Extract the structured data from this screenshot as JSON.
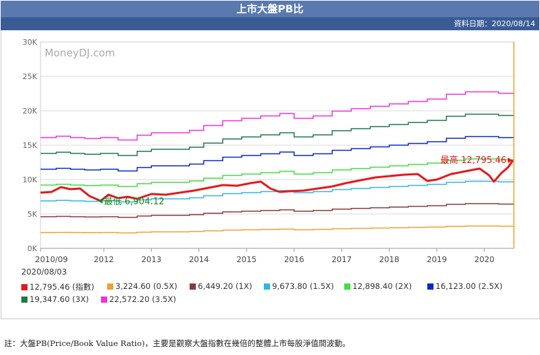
{
  "header": {
    "title": "上市大盤PB比",
    "date_text": "資料日期：2020/08/14"
  },
  "chart_data": {
    "type": "line",
    "watermark": "MoneyDJ.com",
    "x_ticks": [
      "2010/09",
      "2012",
      "2013",
      "2014",
      "2015",
      "2016",
      "2017",
      "2018",
      "2019",
      "2020"
    ],
    "y_ticks": [
      "0K",
      "5K",
      "10K",
      "15K",
      "20K",
      "25K",
      "30K"
    ],
    "ylim": [
      0,
      30000
    ],
    "x_range": [
      2010.67,
      2020.62
    ],
    "legend_date": "2020/08/03",
    "annotations": {
      "max_label": "最高 12,795.46",
      "min_label": "最低 6,904.12",
      "max_point": {
        "x": 2020.55,
        "y": 12795
      },
      "min_point": {
        "x": 2011.93,
        "y": 6904
      }
    },
    "index_series": {
      "name": "12,795.46 (指數)",
      "color": "#e31a1c",
      "x": [
        2010.67,
        2010.9,
        2011.1,
        2011.3,
        2011.5,
        2011.7,
        2011.93,
        2012.1,
        2012.3,
        2012.5,
        2012.7,
        2013.0,
        2013.3,
        2013.6,
        2013.9,
        2014.2,
        2014.5,
        2014.8,
        2015.1,
        2015.3,
        2015.5,
        2015.7,
        2015.9,
        2016.2,
        2016.5,
        2016.8,
        2017.1,
        2017.4,
        2017.7,
        2018.0,
        2018.3,
        2018.6,
        2018.8,
        2019.0,
        2019.3,
        2019.6,
        2019.9,
        2020.1,
        2020.2,
        2020.35,
        2020.5,
        2020.6
      ],
      "values": [
        8100,
        8200,
        8900,
        8600,
        8700,
        7600,
        6904,
        7800,
        7300,
        7500,
        7200,
        7900,
        7800,
        8100,
        8400,
        8800,
        9200,
        9100,
        9500,
        9700,
        8700,
        8200,
        8300,
        8400,
        8700,
        9000,
        9500,
        9900,
        10300,
        10500,
        10700,
        10800,
        9800,
        10000,
        10800,
        11200,
        11600,
        10600,
        9700,
        10900,
        11800,
        12795
      ]
    },
    "pb_x": [
      2010.67,
      2011.0,
      2011.3,
      2011.6,
      2011.93,
      2012.3,
      2012.7,
      2013.0,
      2013.4,
      2013.8,
      2014.1,
      2014.5,
      2014.9,
      2015.3,
      2015.7,
      2016.0,
      2016.4,
      2016.8,
      2017.2,
      2017.6,
      2018.0,
      2018.4,
      2018.8,
      2019.2,
      2019.6,
      2020.0,
      2020.3,
      2020.62
    ],
    "pb_series": [
      {
        "name": "3,224.60 (0.5X)",
        "color": "#f0a030",
        "values": [
          2300,
          2330,
          2300,
          2280,
          2300,
          2250,
          2350,
          2400,
          2400,
          2450,
          2550,
          2650,
          2700,
          2750,
          2800,
          2700,
          2750,
          2850,
          2900,
          2950,
          3000,
          3050,
          3100,
          3200,
          3250,
          3250,
          3220,
          3224
        ]
      },
      {
        "name": "6,449.20 (1X)",
        "color": "#8b3a3a",
        "values": [
          4600,
          4650,
          4600,
          4560,
          4600,
          4500,
          4700,
          4800,
          4800,
          4900,
          5100,
          5300,
          5400,
          5500,
          5600,
          5400,
          5500,
          5700,
          5800,
          5900,
          6000,
          6100,
          6200,
          6400,
          6500,
          6500,
          6440,
          6449
        ]
      },
      {
        "name": "9,673.80 (1.5X)",
        "color": "#33b5e5",
        "values": [
          6900,
          6980,
          6900,
          6840,
          6900,
          6750,
          7050,
          7200,
          7200,
          7350,
          7650,
          7950,
          8100,
          8250,
          8400,
          8100,
          8250,
          8550,
          8700,
          8850,
          9000,
          9150,
          9300,
          9600,
          9750,
          9750,
          9660,
          9673
        ]
      },
      {
        "name": "12,898.40 (2X)",
        "color": "#44dd44",
        "values": [
          9200,
          9310,
          9200,
          9120,
          9200,
          9000,
          9400,
          9600,
          9600,
          9800,
          10200,
          10600,
          10800,
          11000,
          11200,
          10800,
          11000,
          11400,
          11600,
          11800,
          12000,
          12200,
          12400,
          12800,
          13000,
          13000,
          12880,
          12898
        ]
      },
      {
        "name": "16,123.00 (2.5X)",
        "color": "#0a28c8",
        "values": [
          11500,
          11640,
          11500,
          11400,
          11500,
          11250,
          11750,
          12000,
          12000,
          12250,
          12750,
          13250,
          13500,
          13750,
          14000,
          13500,
          13750,
          14250,
          14500,
          14750,
          15000,
          15250,
          15500,
          16000,
          16250,
          16250,
          16100,
          16123
        ]
      },
      {
        "name": "19,347.60 (3X)",
        "color": "#1f7a4a",
        "values": [
          13800,
          13970,
          13800,
          13680,
          13800,
          13500,
          14100,
          14400,
          14400,
          14700,
          15300,
          15900,
          16200,
          16500,
          16800,
          16200,
          16500,
          17100,
          17400,
          17700,
          18000,
          18300,
          18600,
          19200,
          19500,
          19500,
          19320,
          19347
        ]
      },
      {
        "name": "22,572.20 (3.5X)",
        "color": "#f030e0",
        "values": [
          16100,
          16300,
          16100,
          15960,
          16100,
          15750,
          16450,
          16800,
          16800,
          17150,
          17850,
          18550,
          18900,
          19250,
          19600,
          18900,
          19250,
          19950,
          20300,
          20650,
          21000,
          21350,
          21700,
          22400,
          22750,
          22750,
          22540,
          22572
        ]
      }
    ]
  },
  "footer": {
    "note": "註：大盤PB(Price/Book Value Ratio)，主要是觀察大盤指數在幾倍的整體上市每股淨值間波動。"
  }
}
